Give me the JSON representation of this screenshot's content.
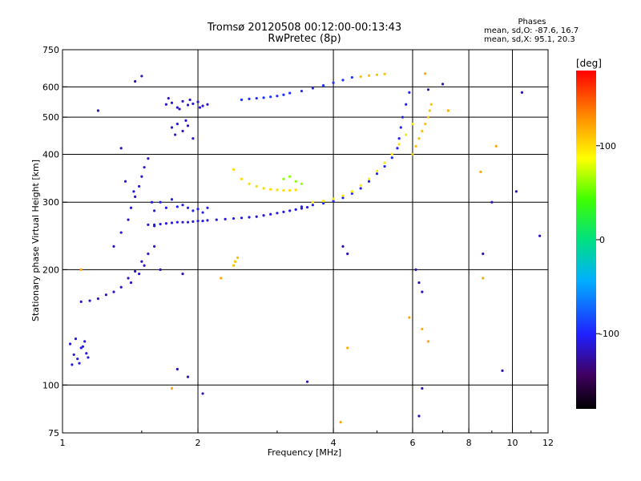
{
  "header": {
    "title": "Tromsø 20120508 00:12:00-00:13:43",
    "subtitle": "RwPretec (8p)"
  },
  "phases_box": {
    "heading": "Phases",
    "line1": "mean, sd,O: -87.6, 16.7",
    "line2": "mean, sd,X:  95.1, 20.3"
  },
  "colorbar": {
    "label": "[deg]",
    "ticks": [
      {
        "value": 100,
        "label": "100"
      },
      {
        "value": 0,
        "label": "0"
      },
      {
        "value": -100,
        "label": "-100"
      }
    ],
    "range": [
      -180,
      180
    ]
  },
  "chart_data": {
    "type": "scatter",
    "title": "Tromsø 20120508 00:12:00-00:13:43",
    "subtitle": "RwPretec (8p)",
    "xlabel": "Frequency [MHz]",
    "ylabel": "Stationary phase Virtual Height [km]",
    "x_scale": "log",
    "y_scale": "log",
    "xlim": [
      1,
      12
    ],
    "ylim": [
      75,
      750
    ],
    "x_ticks": [
      1,
      2,
      4,
      6,
      8,
      10,
      12
    ],
    "y_ticks": [
      75,
      100,
      200,
      300,
      400,
      500,
      600,
      750
    ],
    "x_grid": [
      2,
      4,
      6,
      8,
      10
    ],
    "y_grid": [
      100,
      200,
      300,
      400,
      500,
      600
    ],
    "color_by": "phase [deg]",
    "series": [
      {
        "x": [
          1.04,
          1.06,
          1.08,
          1.1,
          1.12,
          1.14,
          1.05,
          1.09,
          1.13,
          1.07,
          1.11
        ],
        "y": [
          128,
          120,
          117,
          125,
          130,
          118,
          113,
          114,
          121,
          132,
          126
        ],
        "phase": -110
      },
      {
        "x": [
          1.1,
          1.15,
          1.2,
          1.25,
          1.3,
          1.35,
          1.4,
          1.45,
          1.5,
          1.55,
          1.6,
          1.42,
          1.48,
          1.52
        ],
        "y": [
          165,
          166,
          168,
          172,
          175,
          180,
          190,
          198,
          210,
          220,
          230,
          185,
          195,
          205
        ],
        "phase": -115
      },
      {
        "x": [
          1.3,
          1.35,
          1.4,
          1.42,
          1.45,
          1.48,
          1.5,
          1.52,
          1.55,
          1.58,
          1.6,
          1.38,
          1.44
        ],
        "y": [
          230,
          250,
          270,
          290,
          310,
          330,
          350,
          370,
          390,
          300,
          260,
          340,
          320
        ],
        "phase": -112
      },
      {
        "x": [
          1.55,
          1.6,
          1.65,
          1.7,
          1.75,
          1.8,
          1.85,
          1.9,
          1.95,
          2.0,
          2.05,
          2.1,
          2.2,
          2.3,
          2.4,
          2.5,
          2.6,
          2.7,
          2.8,
          2.9,
          3.0,
          3.1,
          3.2,
          3.3,
          3.4,
          3.5
        ],
        "y": [
          262,
          262,
          263,
          264,
          265,
          266,
          266,
          266,
          267,
          268,
          268,
          269,
          270,
          271,
          272,
          273,
          274,
          275,
          277,
          279,
          281,
          283,
          285,
          287,
          289,
          291
        ],
        "phase": -110
      },
      {
        "x": [
          1.6,
          1.7,
          1.8,
          1.9,
          2.0,
          2.1,
          1.65,
          1.75,
          1.85,
          1.95,
          2.05
        ],
        "y": [
          285,
          290,
          292,
          290,
          288,
          290,
          300,
          305,
          295,
          285,
          282
        ],
        "phase": -105
      },
      {
        "x": [
          3.4,
          3.6,
          3.8,
          4.0,
          4.2,
          4.4,
          4.6,
          4.8,
          5.0,
          5.2,
          5.4,
          5.55,
          5.6,
          5.65,
          5.7,
          5.8,
          5.9
        ],
        "y": [
          292,
          295,
          298,
          302,
          308,
          316,
          326,
          340,
          356,
          372,
          392,
          415,
          440,
          470,
          500,
          540,
          580
        ],
        "phase": -100
      },
      {
        "x": [
          1.7,
          1.75,
          1.8,
          1.85,
          1.9,
          1.95,
          2.0,
          2.05,
          2.1,
          1.72,
          1.82,
          1.92,
          2.02
        ],
        "y": [
          540,
          545,
          530,
          550,
          538,
          542,
          548,
          535,
          540,
          560,
          525,
          555,
          530
        ],
        "phase": -115
      },
      {
        "x": [
          1.75,
          1.8,
          1.85,
          1.9,
          1.78,
          1.88,
          1.95
        ],
        "y": [
          470,
          480,
          460,
          475,
          450,
          490,
          440
        ],
        "phase": -112
      },
      {
        "x": [
          2.5,
          2.6,
          2.7,
          2.8,
          2.9,
          3.0,
          3.1,
          3.2,
          3.4,
          3.6,
          3.8,
          4.0,
          4.2,
          4.4
        ],
        "y": [
          555,
          558,
          560,
          562,
          565,
          568,
          572,
          578,
          585,
          595,
          605,
          615,
          625,
          635
        ],
        "phase": -95
      },
      {
        "x": [
          2.4,
          2.5,
          2.6,
          2.7,
          2.8,
          2.9,
          3.0,
          3.1,
          3.2,
          3.3
        ],
        "y": [
          365,
          345,
          335,
          330,
          326,
          324,
          323,
          322,
          322,
          323
        ],
        "phase": 100
      },
      {
        "x": [
          3.6,
          3.8,
          4.0,
          4.2,
          4.4,
          4.6,
          4.8,
          5.0,
          5.2,
          5.4,
          5.6,
          5.8,
          6.0
        ],
        "y": [
          300,
          302,
          306,
          312,
          320,
          332,
          345,
          362,
          380,
          400,
          425,
          450,
          480
        ],
        "phase": 95
      },
      {
        "x": [
          6.0,
          6.1,
          6.2,
          6.3,
          6.4,
          6.5,
          6.55,
          6.6
        ],
        "y": [
          400,
          420,
          440,
          460,
          480,
          500,
          520,
          540
        ],
        "phase": 110
      },
      {
        "x": [
          4.6,
          4.8,
          5.0,
          5.2
        ],
        "y": [
          638,
          642,
          645,
          648
        ],
        "phase": 110
      },
      {
        "x": [
          2.4,
          2.42,
          2.45
        ],
        "y": [
          205,
          210,
          215
        ],
        "phase": 110
      },
      {
        "x": [
          3.1,
          3.2,
          3.3,
          3.4
        ],
        "y": [
          345,
          350,
          340,
          335
        ],
        "phase": 60
      },
      {
        "x": [
          1.2,
          1.35,
          1.45,
          1.5,
          1.65,
          1.85,
          2.05,
          3.5,
          4.2,
          4.3,
          6.1,
          6.2,
          6.3,
          6.5,
          7.0,
          8.6,
          9.0,
          9.5,
          10.2,
          10.5,
          11.5,
          6.3,
          6.2,
          1.8,
          1.9
        ],
        "y": [
          520,
          415,
          620,
          640,
          200,
          195,
          95,
          102,
          230,
          220,
          200,
          185,
          175,
          590,
          610,
          220,
          300,
          109,
          320,
          580,
          245,
          98,
          83,
          110,
          105
        ],
        "phase": -120
      },
      {
        "x": [
          1.1,
          1.75,
          2.25,
          4.15,
          4.3,
          6.3,
          6.4,
          7.2,
          8.5,
          8.6,
          9.2,
          6.5,
          5.9
        ],
        "y": [
          200,
          98,
          190,
          80,
          125,
          140,
          650,
          520,
          360,
          190,
          420,
          130,
          150
        ],
        "phase": 120
      }
    ]
  }
}
